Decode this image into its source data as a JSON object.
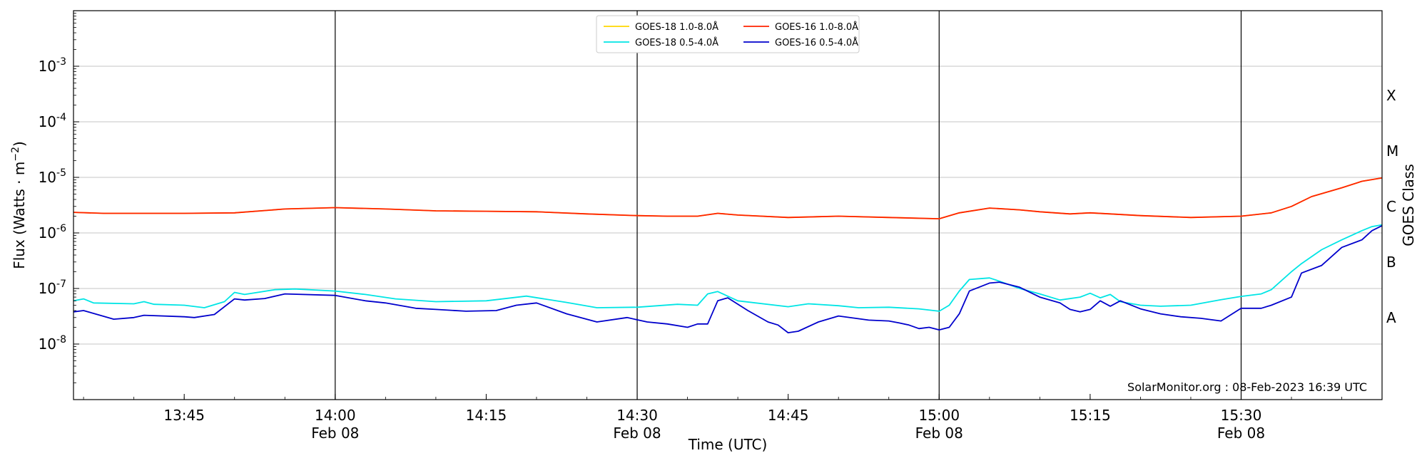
{
  "chart_data": {
    "type": "line",
    "xlabel": "Time (UTC)",
    "ylabel_main": "Flux (Watts · m",
    "ylabel_sup": "−2",
    "ylabel_close": ")",
    "ylabel_right": "GOES Class",
    "credit": "SolarMonitor.org : 08-Feb-2023 16:39 UTC",
    "y_scale": "log",
    "ylim": [
      1e-09,
      0.01
    ],
    "xlim": [
      "13:34",
      "15:44"
    ],
    "grid": "horizontal at each decade",
    "legend_position": "top-center",
    "y_tick_labels": [
      {
        "exp": "-3",
        "value": 0.001
      },
      {
        "exp": "-4",
        "value": 0.0001
      },
      {
        "exp": "-5",
        "value": 1e-05
      },
      {
        "exp": "-6",
        "value": 1e-06
      },
      {
        "exp": "-7",
        "value": 1e-07
      },
      {
        "exp": "-8",
        "value": 1e-08
      }
    ],
    "y_tick_base": "10",
    "x_ticks": [
      {
        "time": "13:45",
        "date": ""
      },
      {
        "time": "14:00",
        "date": "Feb 08"
      },
      {
        "time": "14:15",
        "date": ""
      },
      {
        "time": "14:30",
        "date": "Feb 08"
      },
      {
        "time": "14:45",
        "date": ""
      },
      {
        "time": "15:00",
        "date": "Feb 08"
      },
      {
        "time": "15:15",
        "date": ""
      },
      {
        "time": "15:30",
        "date": "Feb 08"
      }
    ],
    "day_lines": [
      "14:00",
      "14:30",
      "15:00",
      "15:30"
    ],
    "class_labels": [
      {
        "label": "X",
        "value": 0.0003
      },
      {
        "label": "M",
        "value": 3e-05
      },
      {
        "label": "C",
        "value": 3e-06
      },
      {
        "label": "B",
        "value": 3e-07
      },
      {
        "label": "A",
        "value": 3e-08
      }
    ],
    "legend": [
      {
        "name": "GOES-18 1.0-8.0Å",
        "color": "#ffd700"
      },
      {
        "name": "GOES-16 1.0-8.0Å",
        "color": "#ff2200"
      },
      {
        "name": "GOES-18 0.5-4.0Å",
        "color": "#00e5e5"
      },
      {
        "name": "GOES-16 0.5-4.0Å",
        "color": "#0000cc"
      }
    ],
    "series": [
      {
        "name": "GOES-18 1.0-8.0Å",
        "color": "#ffd700",
        "x": [
          "13:34",
          "13:37",
          "13:40",
          "13:45",
          "13:50",
          "13:55",
          "14:00",
          "14:05",
          "14:10",
          "14:15",
          "14:20",
          "14:25",
          "14:30",
          "14:33",
          "14:36",
          "14:38",
          "14:40",
          "14:45",
          "14:50",
          "14:55",
          "15:00",
          "15:02",
          "15:05",
          "15:08",
          "15:10",
          "15:13",
          "15:15",
          "15:17",
          "15:20",
          "15:25",
          "15:30",
          "15:33",
          "15:35",
          "15:37",
          "15:40",
          "15:42",
          "15:44"
        ],
        "values": [
          2.35e-06,
          2.25e-06,
          2.25e-06,
          2.25e-06,
          2.3e-06,
          2.7e-06,
          2.85e-06,
          2.7e-06,
          2.5e-06,
          2.45e-06,
          2.4e-06,
          2.2e-06,
          2.05e-06,
          2e-06,
          2e-06,
          2.25e-06,
          2.1e-06,
          1.9e-06,
          2e-06,
          1.9e-06,
          1.8e-06,
          2.3e-06,
          2.8e-06,
          2.6e-06,
          2.4e-06,
          2.2e-06,
          2.3e-06,
          2.2e-06,
          2.05e-06,
          1.9e-06,
          2e-06,
          2.3e-06,
          3e-06,
          4.5e-06,
          6.5e-06,
          8.5e-06,
          9.8e-06
        ]
      },
      {
        "name": "GOES-16 1.0-8.0Å",
        "color": "#ff2200",
        "x": [
          "13:34",
          "13:37",
          "13:40",
          "13:45",
          "13:50",
          "13:55",
          "14:00",
          "14:05",
          "14:10",
          "14:15",
          "14:20",
          "14:25",
          "14:30",
          "14:33",
          "14:36",
          "14:38",
          "14:40",
          "14:45",
          "14:50",
          "14:55",
          "15:00",
          "15:02",
          "15:05",
          "15:08",
          "15:10",
          "15:13",
          "15:15",
          "15:17",
          "15:20",
          "15:25",
          "15:30",
          "15:33",
          "15:35",
          "15:37",
          "15:40",
          "15:42",
          "15:44"
        ],
        "values": [
          2.35e-06,
          2.25e-06,
          2.25e-06,
          2.25e-06,
          2.3e-06,
          2.7e-06,
          2.85e-06,
          2.7e-06,
          2.5e-06,
          2.45e-06,
          2.4e-06,
          2.2e-06,
          2.05e-06,
          2e-06,
          2e-06,
          2.25e-06,
          2.1e-06,
          1.9e-06,
          2e-06,
          1.9e-06,
          1.8e-06,
          2.3e-06,
          2.8e-06,
          2.6e-06,
          2.4e-06,
          2.2e-06,
          2.3e-06,
          2.2e-06,
          2.05e-06,
          1.9e-06,
          2e-06,
          2.3e-06,
          3e-06,
          4.5e-06,
          6.5e-06,
          8.5e-06,
          9.8e-06
        ]
      },
      {
        "name": "GOES-18 0.5-4.0Å",
        "color": "#00e5e5",
        "x": [
          "13:34",
          "13:35",
          "13:36",
          "13:40",
          "13:41",
          "13:42",
          "13:45",
          "13:47",
          "13:49",
          "13:50",
          "13:51",
          "13:54",
          "13:56",
          "14:00",
          "14:03",
          "14:06",
          "14:10",
          "14:15",
          "14:19",
          "14:23",
          "14:26",
          "14:30",
          "14:34",
          "14:36",
          "14:37",
          "14:38",
          "14:40",
          "14:45",
          "14:47",
          "14:50",
          "14:52",
          "14:55",
          "14:58",
          "15:00",
          "15:01",
          "15:02",
          "15:03",
          "15:05",
          "15:06",
          "15:08",
          "15:10",
          "15:12",
          "15:14",
          "15:15",
          "15:16",
          "15:17",
          "15:18",
          "15:20",
          "15:22",
          "15:25",
          "15:28",
          "15:30",
          "15:32",
          "15:33",
          "15:35",
          "15:36",
          "15:38",
          "15:40",
          "15:42",
          "15:43",
          "15:44"
        ],
        "values": [
          6e-08,
          6.5e-08,
          5.5e-08,
          5.3e-08,
          5.8e-08,
          5.2e-08,
          5e-08,
          4.5e-08,
          5.8e-08,
          8.5e-08,
          7.8e-08,
          9.5e-08,
          9.8e-08,
          9e-08,
          7.8e-08,
          6.5e-08,
          5.8e-08,
          6e-08,
          7.3e-08,
          5.6e-08,
          4.5e-08,
          4.6e-08,
          5.2e-08,
          5e-08,
          8e-08,
          8.8e-08,
          6e-08,
          4.7e-08,
          5.3e-08,
          4.9e-08,
          4.5e-08,
          4.6e-08,
          4.3e-08,
          3.9e-08,
          5e-08,
          9e-08,
          1.45e-07,
          1.55e-07,
          1.35e-07,
          1e-07,
          8e-08,
          6.2e-08,
          7e-08,
          8.2e-08,
          6.8e-08,
          7.8e-08,
          5.8e-08,
          5e-08,
          4.8e-08,
          5e-08,
          6.3e-08,
          7.2e-08,
          8e-08,
          9.5e-08,
          2e-07,
          2.8e-07,
          5e-07,
          7.5e-07,
          1.1e-06,
          1.3e-06,
          1.4e-06
        ]
      },
      {
        "name": "GOES-16 0.5-4.0Å",
        "color": "#0000cc",
        "x": [
          "13:34",
          "13:35",
          "13:38",
          "13:40",
          "13:41",
          "13:45",
          "13:46",
          "13:48",
          "13:50",
          "13:51",
          "13:53",
          "13:55",
          "14:00",
          "14:03",
          "14:05",
          "14:08",
          "14:10",
          "14:13",
          "14:16",
          "14:18",
          "14:20",
          "14:23",
          "14:26",
          "14:29",
          "14:31",
          "14:33",
          "14:35",
          "14:36",
          "14:37",
          "14:38",
          "14:39",
          "14:41",
          "14:43",
          "14:44",
          "14:45",
          "14:46",
          "14:48",
          "14:50",
          "14:53",
          "14:55",
          "14:56",
          "14:57",
          "14:58",
          "14:59",
          "15:00",
          "15:01",
          "15:02",
          "15:03",
          "15:05",
          "15:06",
          "15:08",
          "15:10",
          "15:12",
          "15:13",
          "15:14",
          "15:15",
          "15:16",
          "15:17",
          "15:18",
          "15:20",
          "15:22",
          "15:24",
          "15:26",
          "15:28",
          "15:30",
          "15:32",
          "15:33",
          "15:35",
          "15:36",
          "15:38",
          "15:40",
          "15:42",
          "15:43",
          "15:44"
        ],
        "values": [
          3.8e-08,
          4e-08,
          2.8e-08,
          3e-08,
          3.3e-08,
          3.1e-08,
          3e-08,
          3.4e-08,
          6.5e-08,
          6.2e-08,
          6.6e-08,
          8e-08,
          7.5e-08,
          6e-08,
          5.5e-08,
          4.4e-08,
          4.2e-08,
          3.9e-08,
          4e-08,
          5e-08,
          5.5e-08,
          3.5e-08,
          2.5e-08,
          3e-08,
          2.5e-08,
          2.3e-08,
          2e-08,
          2.3e-08,
          2.3e-08,
          6e-08,
          6.8e-08,
          4e-08,
          2.5e-08,
          2.2e-08,
          1.6e-08,
          1.7e-08,
          2.5e-08,
          3.2e-08,
          2.7e-08,
          2.6e-08,
          2.4e-08,
          2.2e-08,
          1.9e-08,
          2e-08,
          1.8e-08,
          2e-08,
          3.5e-08,
          9e-08,
          1.25e-07,
          1.3e-07,
          1.05e-07,
          7e-08,
          5.5e-08,
          4.2e-08,
          3.8e-08,
          4.2e-08,
          6e-08,
          4.8e-08,
          6e-08,
          4.3e-08,
          3.5e-08,
          3.1e-08,
          2.9e-08,
          2.6e-08,
          4.4e-08,
          4.4e-08,
          5e-08,
          7e-08,
          1.9e-07,
          2.6e-07,
          5.5e-07,
          7.5e-07,
          1.1e-06,
          1.35e-06
        ]
      }
    ]
  }
}
